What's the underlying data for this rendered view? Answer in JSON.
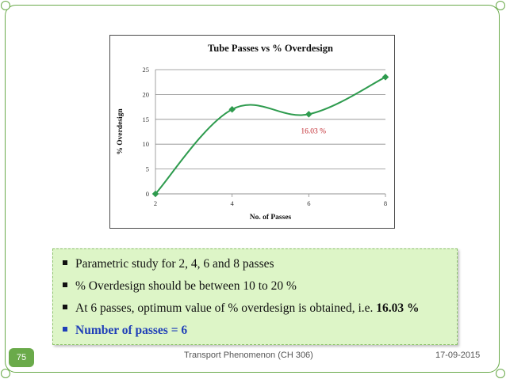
{
  "chart_data": {
    "type": "line",
    "title": "Tube Passes vs % Overdesign",
    "xlabel": "No. of Passes",
    "ylabel": "% Overdesign",
    "x": [
      2,
      4,
      6,
      8
    ],
    "xticks": [
      "2",
      "4",
      "6",
      "8"
    ],
    "yticks": [
      "0",
      "5",
      "10",
      "15",
      "20",
      "25"
    ],
    "xlim": [
      2,
      8
    ],
    "ylim": [
      0,
      25
    ],
    "grid": true,
    "smooth": true,
    "series": [
      {
        "values": [
          0,
          17,
          16.03,
          23.5
        ],
        "color": "#2e9b4e"
      }
    ],
    "annotation": {
      "text": "16.03 %",
      "color": "#c0262d"
    }
  },
  "bullets": [
    {
      "text": "Parametric study for 2, 4, 6 and 8 passes"
    },
    {
      "text": "% Overdesign should be between 10 to 20 %"
    },
    {
      "text": "At 6 passes, optimum value of % overdesign is obtained, i.e. ",
      "bold": "16.03 %"
    },
    {
      "text": "Number of passes = 6"
    }
  ],
  "footer": {
    "page_number": "75",
    "title": "Transport Phenomenon (CH 306)",
    "date": "17-09-2015"
  },
  "colors": {
    "accent": "#6aaa4a",
    "box_fill": "#ddf5c7",
    "highlight": "#1f3fb8"
  }
}
